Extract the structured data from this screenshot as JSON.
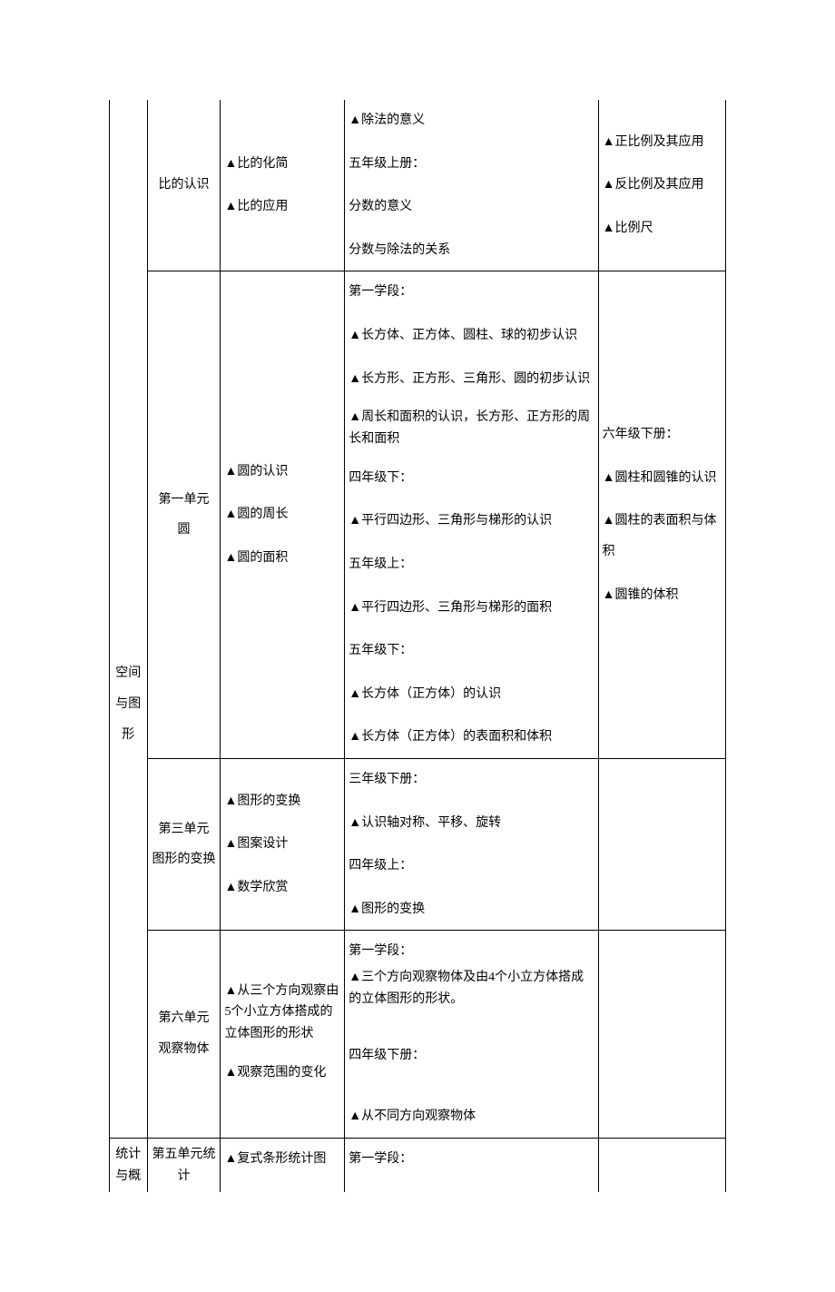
{
  "rows": {
    "r1": {
      "c2": "比的认识",
      "c3": [
        "▲比的化简",
        "▲比的应用"
      ],
      "c4": [
        "▲除法的意义",
        "五年级上册：",
        "分数的意义",
        "分数与除法的关系"
      ],
      "c5": [
        "▲正比例及其应用",
        "▲反比例及其应用",
        "▲比例尺"
      ]
    },
    "r2": {
      "c1": "空间与图形",
      "c2a": "第一单元",
      "c2b": "圆",
      "c3": [
        "▲圆的认识",
        "▲圆的周长",
        "▲圆的面积"
      ],
      "c4": [
        "第一学段：",
        "▲长方体、正方体、圆柱、球的初步认识",
        "▲长方形、正方形、三角形、圆的初步认识",
        "▲周长和面积的认识，长方形、正方形的周长和面积",
        "四年级下：",
        "▲平行四边形、三角形与梯形的认识",
        "五年级上：",
        "▲平行四边形、三角形与梯形的面积",
        "五年级下：",
        "▲长方体（正方体）的认识",
        "▲长方体（正方体）的表面积和体积"
      ],
      "c5": [
        "六年级下册：",
        "▲圆柱和圆锥的认识",
        "▲圆柱的表面积与体积",
        "▲圆锥的体积"
      ]
    },
    "r3": {
      "c2a": "第三单元",
      "c2b": "图形的变换",
      "c3": [
        "▲图形的变换",
        "▲图案设计",
        "▲数学欣赏"
      ],
      "c4": [
        "三年级下册：",
        "▲认识轴对称、平移、旋转",
        "四年级上：",
        "▲图形的变换"
      ]
    },
    "r4": {
      "c2a": "第六单元",
      "c2b": "观察物体",
      "c3": [
        "▲从三个方向观察由5个小立方体搭成的立体图形的形状",
        "▲观察范围的变化"
      ],
      "c4": [
        "第一学段：",
        "▲三个方向观察物体及由4个小立方体搭成的立体图形的形状。",
        "四年级下册：",
        "▲从不同方向观察物体"
      ]
    },
    "r5": {
      "c1": "统计与概",
      "c2": "第五单元统计",
      "c3": "▲复式条形统计图",
      "c4": "第一学段："
    }
  }
}
